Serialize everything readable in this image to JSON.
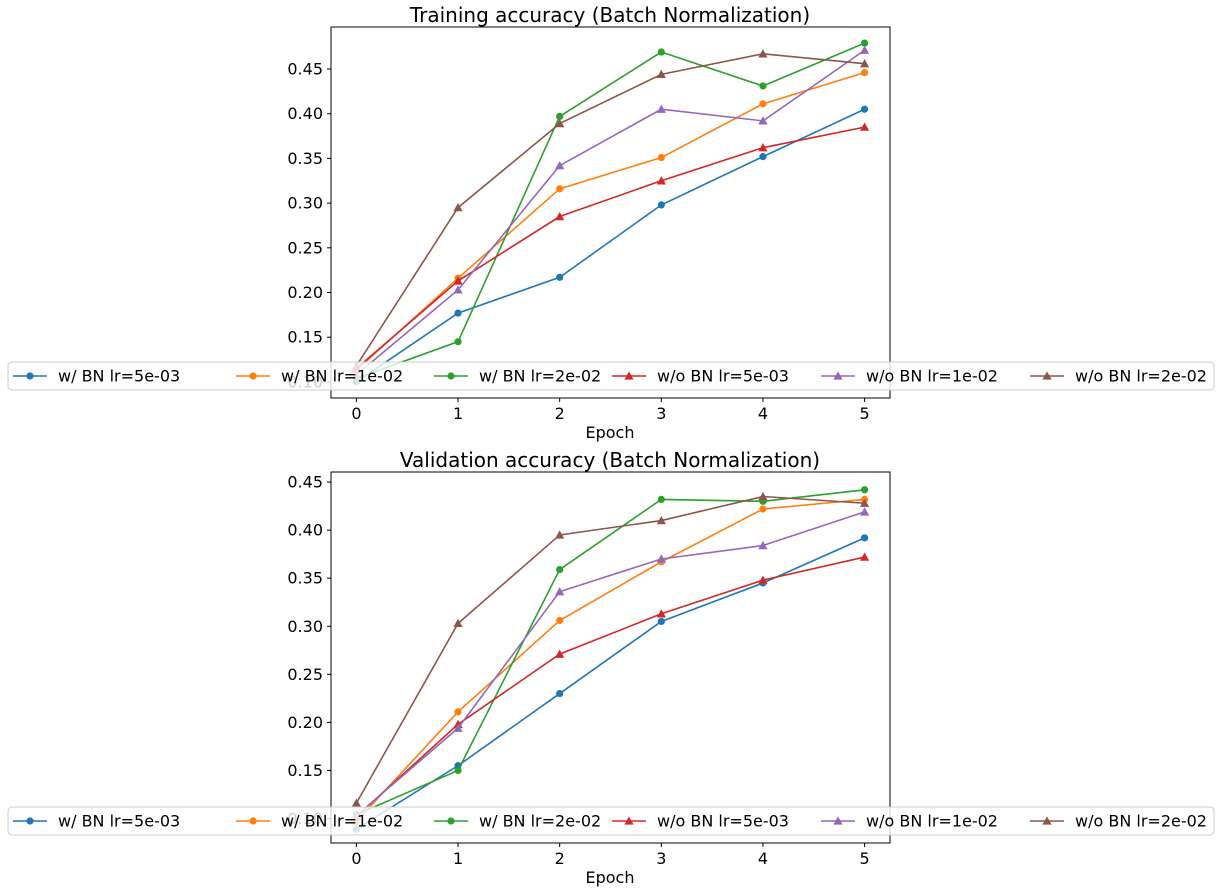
{
  "chart_data": [
    {
      "type": "line",
      "title": "Training accuracy (Batch Normalization)",
      "xlabel": "Epoch",
      "ylabel": "",
      "x": [
        0,
        1,
        2,
        3,
        4,
        5
      ],
      "xlim": [
        -0.25,
        5.25
      ],
      "ylim": [
        0.082,
        0.497
      ],
      "xticks": [
        "0",
        "1",
        "2",
        "3",
        "4",
        "5"
      ],
      "yticks": [
        {
          "value": 0.1,
          "label": "0.10"
        },
        {
          "value": 0.15,
          "label": "0.15"
        },
        {
          "value": 0.2,
          "label": "0.20"
        },
        {
          "value": 0.25,
          "label": "0.25"
        },
        {
          "value": 0.3,
          "label": "0.30"
        },
        {
          "value": 0.35,
          "label": "0.35"
        },
        {
          "value": 0.4,
          "label": "0.40"
        },
        {
          "value": 0.45,
          "label": "0.45"
        }
      ],
      "grid": false,
      "legend_position": "bottom, single row spanning figure width",
      "series": [
        {
          "name": "w/ BN lr=5e-03",
          "marker": "circle",
          "color": "#1f77b4",
          "values": [
            0.1,
            0.177,
            0.217,
            0.298,
            0.352,
            0.405
          ]
        },
        {
          "name": "w/ BN lr=1e-02",
          "marker": "circle",
          "color": "#ff7f0e",
          "values": [
            0.113,
            0.216,
            0.316,
            0.351,
            0.411,
            0.446
          ]
        },
        {
          "name": "w/ BN lr=2e-02",
          "marker": "circle",
          "color": "#2ca02c",
          "values": [
            0.104,
            0.145,
            0.397,
            0.469,
            0.431,
            0.479
          ]
        },
        {
          "name": "w/o BN lr=5e-03",
          "marker": "triangle",
          "color": "#d62728",
          "values": [
            0.115,
            0.213,
            0.285,
            0.325,
            0.362,
            0.385
          ]
        },
        {
          "name": "w/o BN lr=1e-02",
          "marker": "triangle",
          "color": "#9467bd",
          "values": [
            0.108,
            0.203,
            0.342,
            0.405,
            0.392,
            0.471
          ]
        },
        {
          "name": "w/o BN lr=2e-02",
          "marker": "triangle",
          "color": "#8c564b",
          "values": [
            0.118,
            0.295,
            0.389,
            0.444,
            0.467,
            0.456
          ]
        }
      ]
    },
    {
      "type": "line",
      "title": "Validation accuracy (Batch Normalization)",
      "xlabel": "Epoch",
      "ylabel": "",
      "x": [
        0,
        1,
        2,
        3,
        4,
        5
      ],
      "xlim": [
        -0.25,
        5.25
      ],
      "ylim": [
        0.0745,
        0.4605
      ],
      "xticks": [
        "0",
        "1",
        "2",
        "3",
        "4",
        "5"
      ],
      "yticks": [
        {
          "value": 0.1,
          "label": "0.10"
        },
        {
          "value": 0.15,
          "label": "0.15"
        },
        {
          "value": 0.2,
          "label": "0.20"
        },
        {
          "value": 0.25,
          "label": "0.25"
        },
        {
          "value": 0.3,
          "label": "0.30"
        },
        {
          "value": 0.35,
          "label": "0.35"
        },
        {
          "value": 0.4,
          "label": "0.40"
        },
        {
          "value": 0.45,
          "label": "0.45"
        }
      ],
      "grid": false,
      "legend_position": "bottom, single row spanning figure width",
      "series": [
        {
          "name": "w/ BN lr=5e-03",
          "marker": "circle",
          "color": "#1f77b4",
          "values": [
            0.089,
            0.155,
            0.23,
            0.305,
            0.345,
            0.392
          ]
        },
        {
          "name": "w/ BN lr=1e-02",
          "marker": "circle",
          "color": "#ff7f0e",
          "values": [
            0.097,
            0.211,
            0.306,
            0.367,
            0.422,
            0.432
          ]
        },
        {
          "name": "w/ BN lr=2e-02",
          "marker": "circle",
          "color": "#2ca02c",
          "values": [
            0.104,
            0.15,
            0.359,
            0.432,
            0.43,
            0.442
          ]
        },
        {
          "name": "w/o BN lr=5e-03",
          "marker": "triangle",
          "color": "#d62728",
          "values": [
            0.102,
            0.198,
            0.271,
            0.313,
            0.348,
            0.372
          ]
        },
        {
          "name": "w/o BN lr=1e-02",
          "marker": "triangle",
          "color": "#9467bd",
          "values": [
            0.103,
            0.194,
            0.336,
            0.37,
            0.384,
            0.419
          ]
        },
        {
          "name": "w/o BN lr=2e-02",
          "marker": "triangle",
          "color": "#8c564b",
          "values": [
            0.116,
            0.303,
            0.395,
            0.41,
            0.435,
            0.428
          ]
        }
      ]
    }
  ]
}
